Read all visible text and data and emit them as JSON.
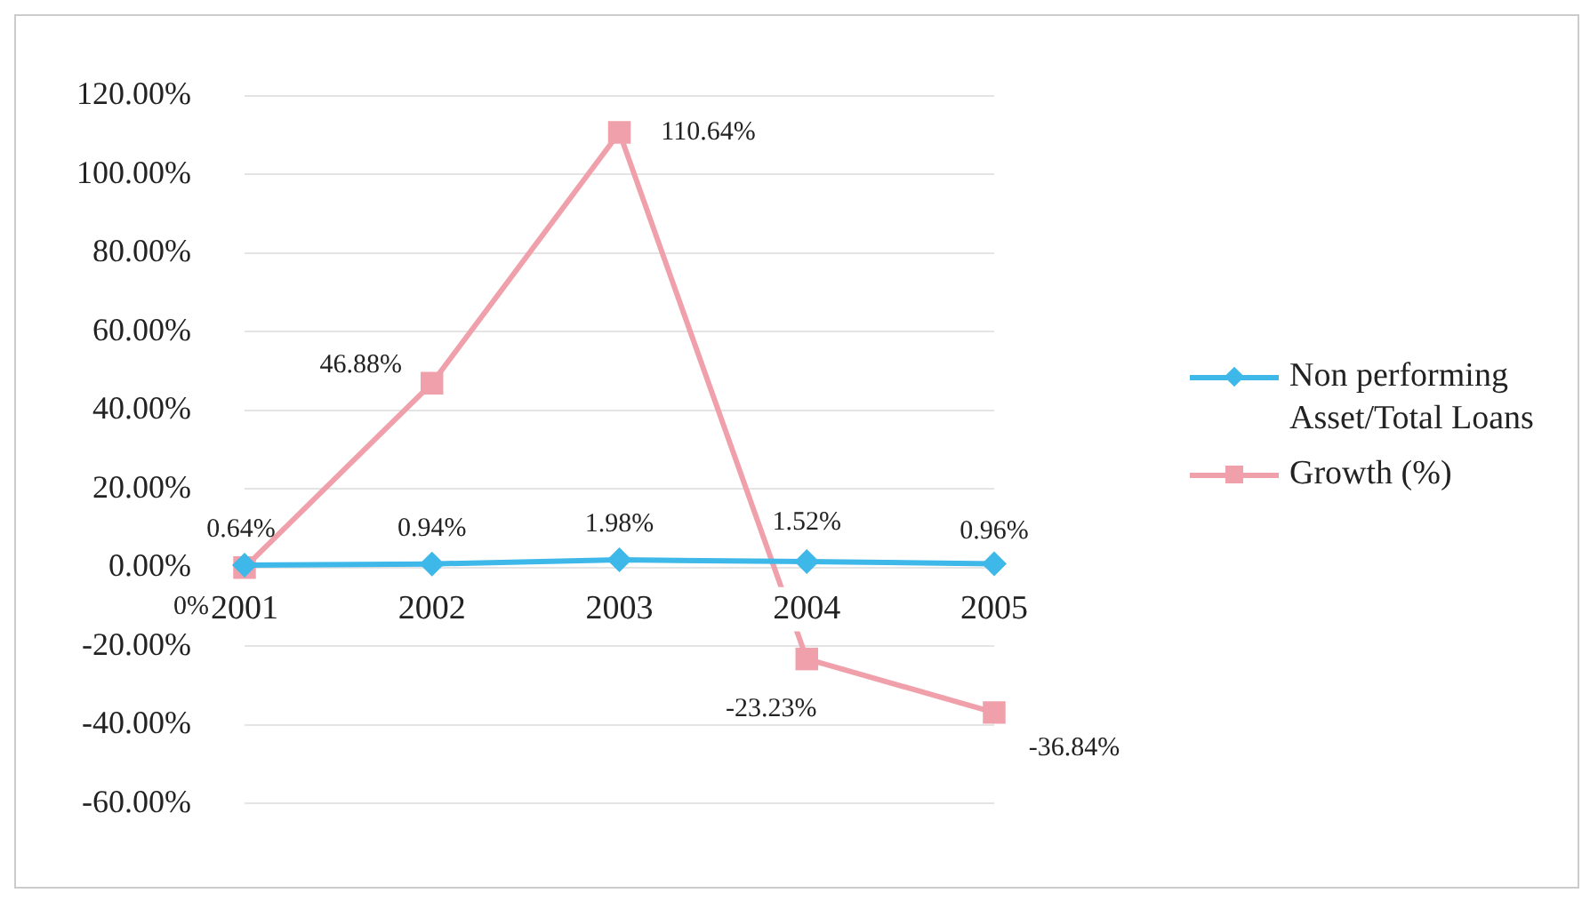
{
  "chart_data": {
    "type": "line",
    "categories": [
      "2001",
      "2002",
      "2003",
      "2004",
      "2005"
    ],
    "series": [
      {
        "name": "Non performing Asset/Total Loans",
        "color": "#3db8e8",
        "marker": "diamond",
        "values": [
          0.64,
          0.94,
          1.98,
          1.52,
          0.96
        ],
        "value_labels": [
          "0.64%",
          "0.94%",
          "1.98%",
          "1.52%",
          "0.96%"
        ]
      },
      {
        "name": "Growth (%)",
        "color": "#f0a0aa",
        "marker": "square",
        "values": [
          0,
          46.88,
          110.64,
          -23.23,
          -36.84
        ],
        "value_labels": [
          "0%",
          "46.88%",
          "110.64%",
          "-23.23%",
          "-36.84%"
        ]
      }
    ],
    "ylim": [
      -60,
      120
    ],
    "yticks": [
      {
        "value": -60,
        "label": "-60.00%"
      },
      {
        "value": -40,
        "label": "-40.00%"
      },
      {
        "value": -20,
        "label": "-20.00%"
      },
      {
        "value": 0,
        "label": "0.00%"
      },
      {
        "value": 20,
        "label": "20.00%"
      },
      {
        "value": 40,
        "label": "40.00%"
      },
      {
        "value": 60,
        "label": "60.00%"
      },
      {
        "value": 80,
        "label": "80.00%"
      },
      {
        "value": 100,
        "label": "100.00%"
      },
      {
        "value": 120,
        "label": "120.00%"
      }
    ],
    "grid": "y",
    "legend": "right"
  }
}
